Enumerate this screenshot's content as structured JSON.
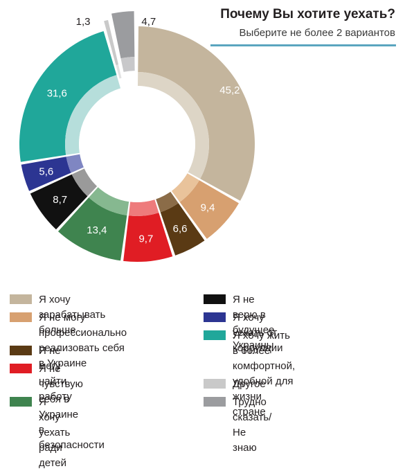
{
  "title": "Почему Вы хотите уехать?",
  "subtitle": "Выберите не более 2 вариантов",
  "chart_data": {
    "type": "donut",
    "slices": [
      {
        "name": "Я хочу зарабатывать больше",
        "value": 45.2,
        "label": "45,2",
        "outer": "#c4b59d",
        "inner": "#ddd5c6"
      },
      {
        "name": "Я не могу профессионально реализовать себя в Украине",
        "value": 9.4,
        "label": "9,4",
        "outer": "#d7a070",
        "inner": "#e9c39b"
      },
      {
        "name": "Я не могу найти работу",
        "value": 6.6,
        "label": "6,6",
        "outer": "#5a3a14",
        "inner": "#8b6c48"
      },
      {
        "name": "Я не чувствую себя в Украине в безопасности",
        "value": 9.7,
        "label": "9,7",
        "outer": "#e01d24",
        "inner": "#ee7b7c"
      },
      {
        "name": "Я хочу уехать ради детей",
        "value": 13.4,
        "label": "13,4",
        "outer": "#3f844f",
        "inner": "#86b890"
      },
      {
        "name": "Я не верю в будущее Украины",
        "value": 8.7,
        "label": "8,7",
        "outer": "#111111",
        "inner": "#9a9a9a"
      },
      {
        "name": "Я хочу уехать от коррупции",
        "value": 5.6,
        "label": "5,6",
        "outer": "#2c3592",
        "inner": "#7f86c2"
      },
      {
        "name": "Я хочу жить в более комфортной, удобной для жизни стране",
        "value": 31.6,
        "label": "31,6",
        "outer": "#20a79a",
        "inner": "#b6dedb"
      },
      {
        "name": "Другое",
        "value": 1.3,
        "label": "1,3",
        "outer": "#c9c9c9",
        "inner": "#e2e2e2"
      },
      {
        "name": "Трудно сказать/Не знаю",
        "value": 4.7,
        "label": "4,7",
        "outer": "#9b9c9f",
        "inner": "#c8c8ca"
      }
    ]
  },
  "legend_left": [
    {
      "lines": [
        "Я хочу зарабатывать больше"
      ],
      "color": "#c4b59d"
    },
    {
      "lines": [
        "Я не могу профессионально",
        "реализовать себя в Украине"
      ],
      "color": "#d7a070"
    },
    {
      "lines": [
        "Я не могу найти работу"
      ],
      "color": "#5a3a14"
    },
    {
      "lines": [
        "Я не чувствую себя в Украине",
        "в безопасности"
      ],
      "color": "#e01d24"
    },
    {
      "lines": [
        "Я хочу уехать ради детей"
      ],
      "color": "#3f844f"
    }
  ],
  "legend_right": [
    {
      "lines": [
        "Я не верю в будущее Украины"
      ],
      "color": "#111111"
    },
    {
      "lines": [
        "Я хочу уехать от коррупции"
      ],
      "color": "#2c3592"
    },
    {
      "lines": [
        "Я хочу жить в более",
        "комфортной, удобной для",
        "жизни стране"
      ],
      "color": "#20a79a"
    },
    {
      "lines": [
        "Другое"
      ],
      "color": "#c9c9c9"
    },
    {
      "lines": [
        "Трудно сказать/Не знаю"
      ],
      "color": "#9b9c9f"
    }
  ]
}
